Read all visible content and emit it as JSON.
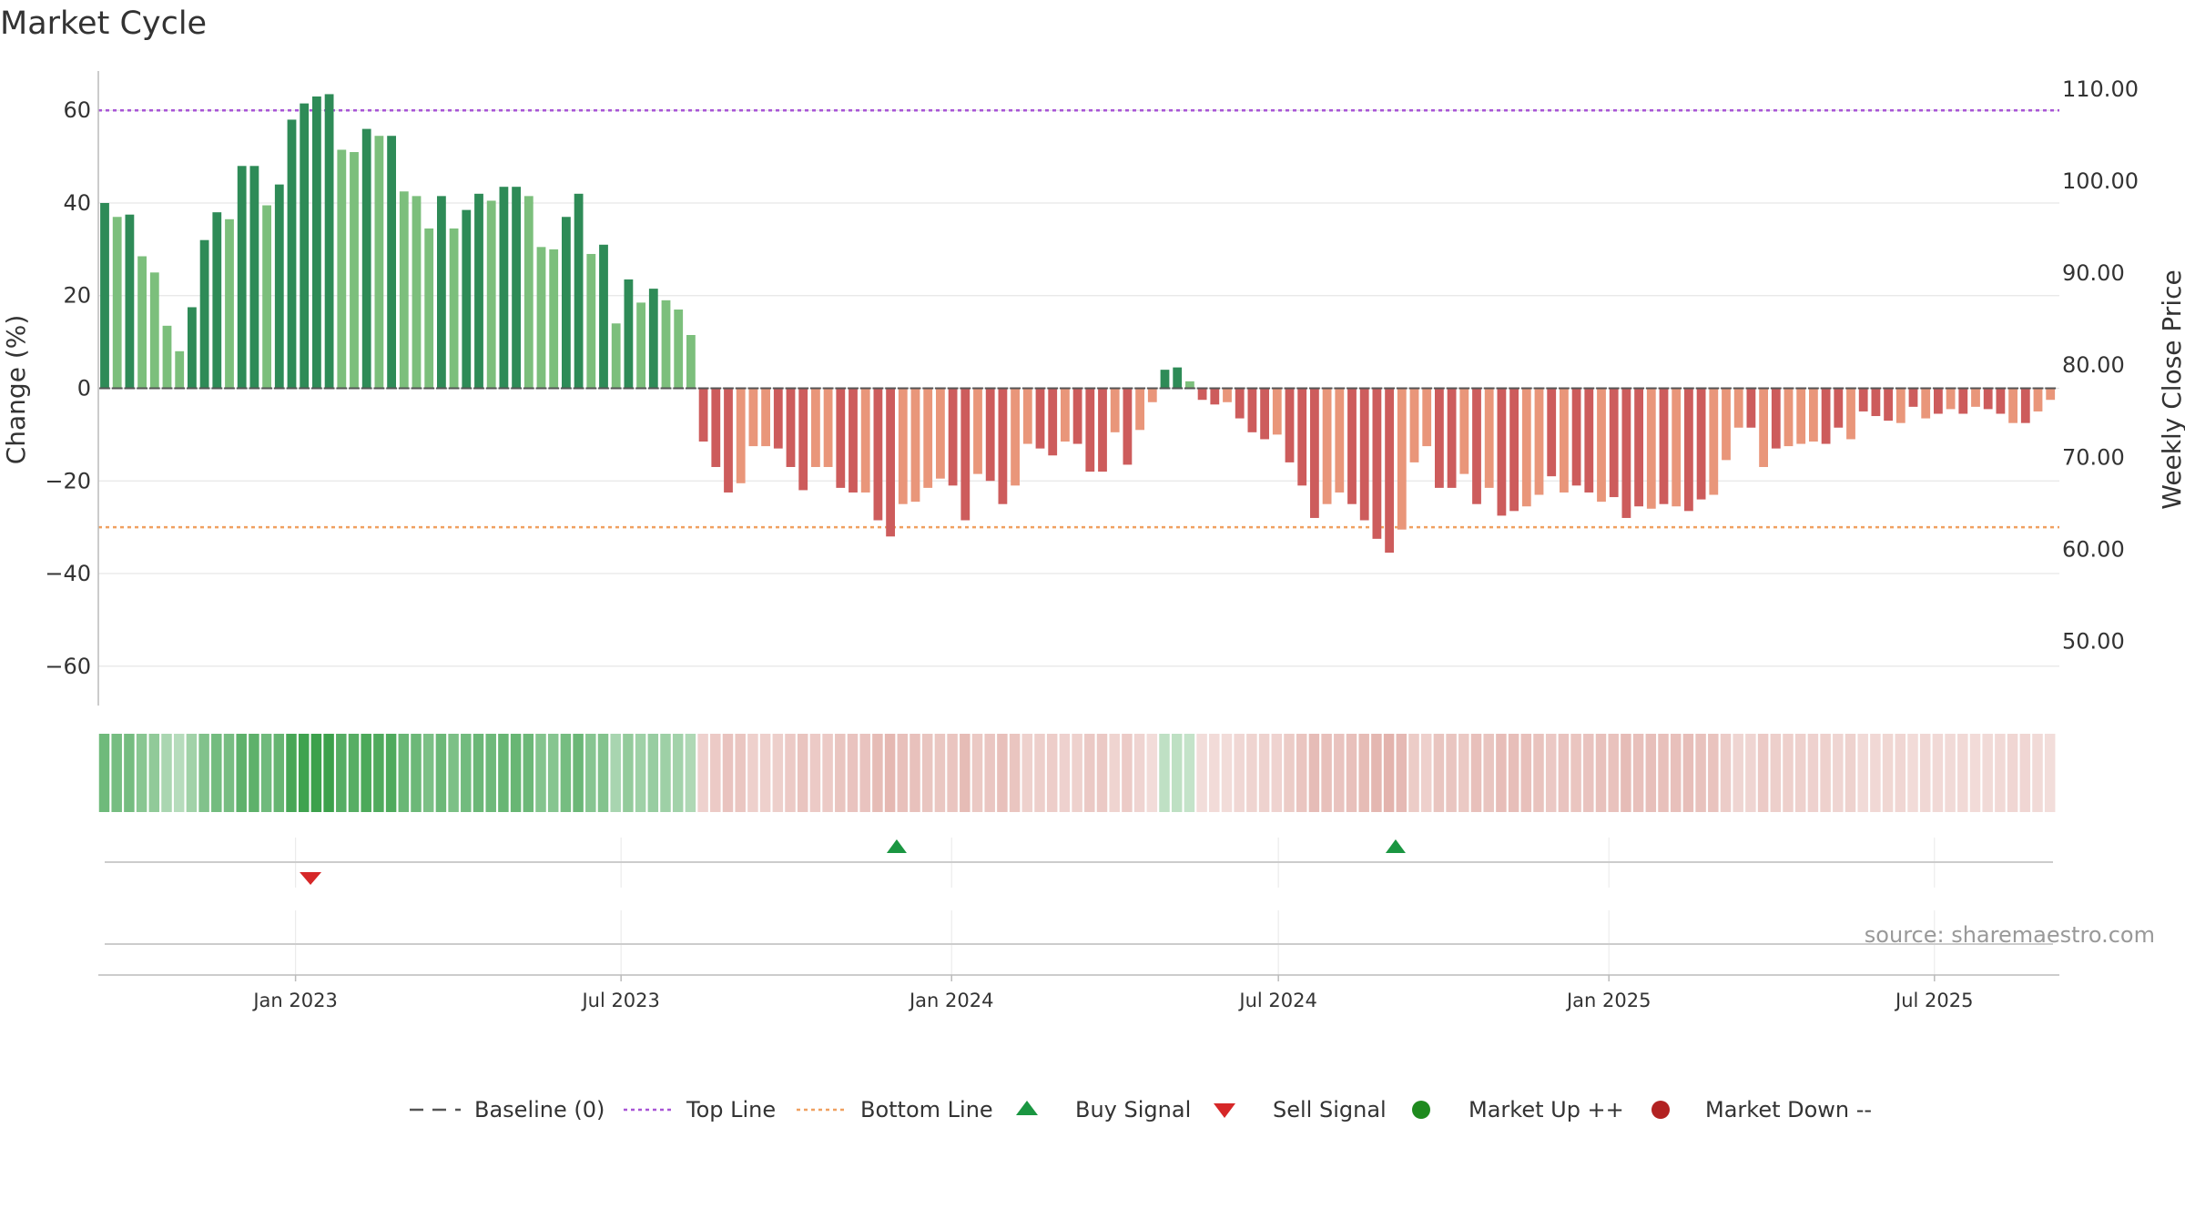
{
  "title": "Market Cycle",
  "source": "source: sharemaestro.com",
  "chart_data": {
    "type": "bar",
    "ylabel": "Change (%)",
    "y2label": "Weekly Close Price",
    "ylim": [
      -68.5,
      68.5
    ],
    "y2lim": [
      43.0,
      112.0
    ],
    "yticks": [
      60,
      40,
      20,
      0,
      -20,
      -40,
      -60
    ],
    "ytick_labels": [
      "60",
      "40",
      "20",
      "0",
      "−20",
      "−40",
      "−60"
    ],
    "y2ticks": [
      110,
      100,
      90,
      80,
      70,
      60,
      50
    ],
    "y2tick_labels": [
      "110.00",
      "100.00",
      "90.00",
      "80.00",
      "70.00",
      "60.00",
      "50.00"
    ],
    "x_tick_labels": [
      "Jan 2023",
      "Jul 2023",
      "Jan 2024",
      "Jul 2024",
      "Jan 2025",
      "Jul 2025"
    ],
    "x_tick_weeks": [
      15.3,
      41.4,
      67.9,
      94.1,
      120.6,
      146.7
    ],
    "top_line": 60,
    "bottom_line": -30,
    "grid": true,
    "colors": {
      "pos_strong": "#2e8b57",
      "pos_light": "#7cbf7c",
      "neg_strong": "#cd5c5c",
      "neg_light": "#e9967a",
      "top_line": "#a855d6",
      "bottom_line": "#f0a060",
      "baseline": "#555555",
      "buy": "#1a9641",
      "sell": "#d62728",
      "market_up": "#1e8a1e",
      "market_down": "#b22222"
    },
    "series": [
      {
        "values": [
          40,
          37,
          37.5,
          28.5,
          25,
          13.5,
          8,
          17.5,
          32,
          38,
          36.5,
          48,
          48,
          39.5,
          44,
          58,
          61.5,
          63,
          63.5,
          51.5,
          51,
          56,
          54.5,
          54.5,
          42.5,
          41.5,
          34.5,
          41.5,
          34.5,
          38.5,
          42,
          40.5,
          43.5,
          43.5,
          41.5,
          30.5,
          30,
          37,
          42,
          29,
          31,
          14,
          23.5,
          18.5,
          21.5,
          19,
          17,
          11.5,
          -11.5,
          -17,
          -22.5,
          -20.5,
          -12.5,
          -12.5,
          -13,
          -17,
          -22,
          -17,
          -17,
          -21.5,
          -22.5,
          -22.5,
          -28.5,
          -32,
          -25,
          -24.5,
          -21.5,
          -19.5,
          -21,
          -28.5,
          -18.5,
          -20,
          -25,
          -21,
          -12,
          -13,
          -14.5,
          -11.5,
          -12,
          -18,
          -18,
          -9.5,
          -16.5,
          -9,
          -3,
          4,
          4.5,
          1.5,
          -2.5,
          -3.5,
          -3,
          -6.5,
          -9.5,
          -11,
          -10,
          -16,
          -21,
          -28,
          -25,
          -22.5,
          -25,
          -28.5,
          -32.5,
          -35.5,
          -30.5,
          -16,
          -12.5,
          -21.5,
          -21.5,
          -18.5,
          -25,
          -21.5,
          -27.5,
          -26.5,
          -25.5,
          -23,
          -19,
          -22.5,
          -21,
          -22.5,
          -24.5,
          -23.5,
          -28,
          -25.5,
          -26,
          -25,
          -25.5,
          -26.5,
          -24,
          -23,
          -15.5,
          -8.5,
          -8.5,
          -17,
          -13,
          -12.5,
          -12,
          -11.5,
          -12,
          -8.5,
          -11,
          -5,
          -6,
          -7,
          -7.5,
          -4,
          -6.5,
          -5.5,
          -4.5,
          -5.5,
          -4,
          -4.5,
          -5.5,
          -7.5,
          -7.5,
          -5,
          -2.5
        ]
      }
    ],
    "shade": [
      1,
      0,
      1,
      0,
      0,
      0,
      0,
      1,
      1,
      1,
      0,
      1,
      1,
      0,
      1,
      1,
      1,
      1,
      1,
      0,
      0,
      1,
      0,
      1,
      0,
      0,
      0,
      1,
      0,
      1,
      1,
      0,
      1,
      1,
      0,
      0,
      0,
      1,
      1,
      0,
      1,
      0,
      1,
      0,
      1,
      0,
      0,
      0,
      1,
      1,
      1,
      0,
      0,
      0,
      1,
      1,
      1,
      0,
      0,
      1,
      1,
      0,
      1,
      1,
      0,
      0,
      0,
      0,
      1,
      1,
      0,
      1,
      1,
      0,
      0,
      1,
      1,
      0,
      1,
      1,
      1,
      0,
      1,
      0,
      0,
      1,
      1,
      0,
      1,
      1,
      0,
      1,
      1,
      1,
      0,
      1,
      1,
      1,
      0,
      0,
      1,
      1,
      1,
      1,
      0,
      0,
      0,
      1,
      1,
      0,
      1,
      0,
      1,
      1,
      0,
      0,
      1,
      0,
      1,
      1,
      0,
      1,
      1,
      1,
      0,
      1,
      0,
      1,
      1,
      0,
      0,
      0,
      1,
      0,
      1,
      0,
      0,
      0,
      1,
      1,
      0,
      1,
      1,
      1,
      0,
      1,
      0,
      1,
      0,
      1,
      0,
      1,
      1,
      0,
      1,
      0
    ],
    "buy_signals": [
      63.5,
      103.5
    ],
    "sell_signals": [
      16.5
    ]
  },
  "legend": [
    {
      "label": "Baseline (0)",
      "symbol": "dash"
    },
    {
      "label": "Top Line",
      "symbol": "dot-purple"
    },
    {
      "label": "Bottom Line",
      "symbol": "dot-orange"
    },
    {
      "label": "Buy Signal",
      "symbol": "triangle-up"
    },
    {
      "label": "Sell Signal",
      "symbol": "triangle-down"
    },
    {
      "label": "Market Up ++",
      "symbol": "circle-green"
    },
    {
      "label": "Market Down --",
      "symbol": "circle-red"
    }
  ]
}
